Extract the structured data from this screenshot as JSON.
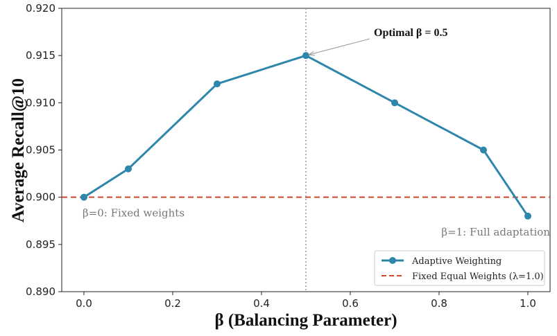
{
  "chart_data": {
    "type": "line",
    "xlabel": "β (Balancing Parameter)",
    "ylabel": "Average Recall@10",
    "xlim": [
      -0.05,
      1.05
    ],
    "ylim": [
      0.89,
      0.92
    ],
    "xticks": [
      "0.0",
      "0.2",
      "0.4",
      "0.6",
      "0.8",
      "1.0"
    ],
    "yticks": [
      "0.890",
      "0.895",
      "0.900",
      "0.905",
      "0.910",
      "0.915",
      "0.920"
    ],
    "grid": false,
    "legend_position": "lower-right",
    "series": [
      {
        "name": "Adaptive Weighting",
        "color": "#2E86AB",
        "x": [
          0.0,
          0.1,
          0.3,
          0.5,
          0.7,
          0.9,
          1.0
        ],
        "y": [
          0.9,
          0.903,
          0.912,
          0.915,
          0.91,
          0.905,
          0.898
        ]
      }
    ],
    "reference_line": {
      "name": "Fixed Equal Weights (λ=1.0)",
      "y": 0.9,
      "color": "#D1462F",
      "style": "dashed"
    },
    "vertical_line": {
      "x": 0.5,
      "color": "#999999",
      "style": "dotted"
    },
    "annotations": [
      {
        "text": "Optimal β = 0.5",
        "x": 0.5,
        "y": 0.915,
        "style": "bold-with-arrow"
      },
      {
        "text": "β=0: Fixed weights",
        "x": 0.0,
        "y": 0.9
      },
      {
        "text": "β=1: Full adaptation",
        "x": 1.0,
        "y": 0.898
      }
    ]
  }
}
